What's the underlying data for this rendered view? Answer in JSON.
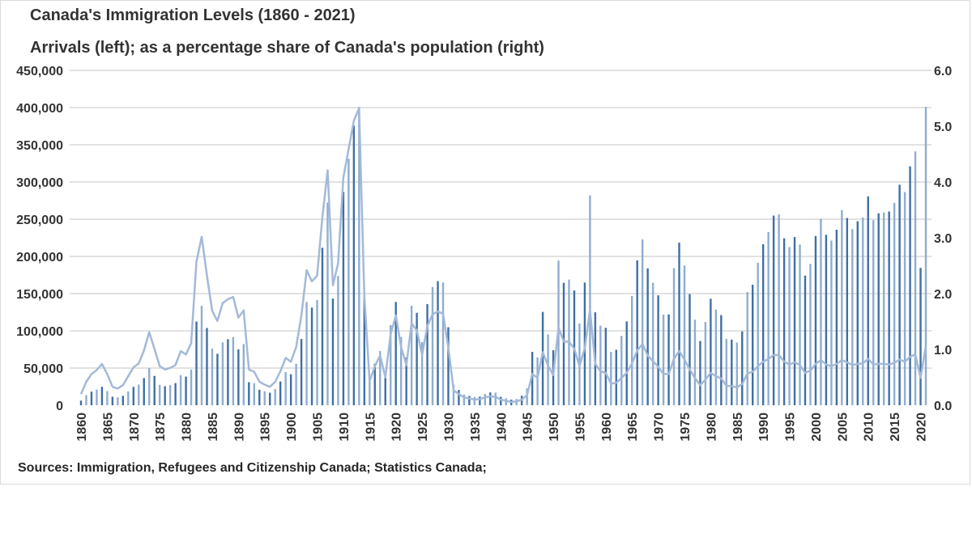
{
  "chart_data": {
    "type": "bar+line",
    "title": "Canada's Immigration Levels (1860 - 2021)",
    "subtitle": "Arrivals (left); as a percentage share of Canada's population (right)",
    "source": "Sources: Immigration, Refugees and Citizenship Canada;  Statistics Canada;",
    "xlabel": "",
    "ylabel": "",
    "y_left": {
      "range": [
        0,
        450000
      ],
      "ticks": [
        "0",
        "50,000",
        "100,000",
        "150,000",
        "200,000",
        "250,000",
        "300,000",
        "350,000",
        "400,000",
        "450,000"
      ]
    },
    "y_right": {
      "range": [
        0,
        6
      ],
      "ticks": [
        "0.0",
        "1.0",
        "2.0",
        "3.0",
        "4.0",
        "5.0",
        "6.0"
      ]
    },
    "x_ticks": [
      "1860",
      "1865",
      "1870",
      "1875",
      "1880",
      "1885",
      "1890",
      "1895",
      "1900",
      "1905",
      "1910",
      "1915",
      "1920",
      "1925",
      "1930",
      "1935",
      "1940",
      "1945",
      "1950",
      "1955",
      "1960",
      "1965",
      "1970",
      "1975",
      "1980",
      "1985",
      "1990",
      "1995",
      "2000",
      "2005",
      "2010",
      "2015",
      "2020"
    ],
    "grid": true,
    "legend": "none",
    "colors": {
      "bars_dark": "#3f6fa3",
      "bars_light": "#8fadd0",
      "line": "#a3b9d8",
      "grid": "#d9d9d9"
    },
    "x_start": 1860,
    "x_end": 2021,
    "series": [
      {
        "type": "bar",
        "axis": "left",
        "values": [
          6276,
          13589,
          18294,
          21000,
          24779,
          18958,
          11427,
          10666,
          12765,
          18630,
          24706,
          27773,
          36578,
          50050,
          39373,
          27382,
          25633,
          27082,
          29807,
          40492,
          38505,
          47991,
          112458,
          133624,
          103824,
          76169,
          69152,
          84526,
          88766,
          91600,
          75067,
          82165,
          30996,
          29633,
          20829,
          18790,
          16835,
          21716,
          31900,
          44543,
          41681,
          55747,
          89102,
          138660,
          131252,
          141465,
          211653,
          272409,
          143326,
          173694,
          286839,
          331288,
          375756,
          400870,
          150484,
          33665,
          55914,
          72910,
          41845,
          107698,
          138824,
          91728,
          64224,
          133729,
          124164,
          84907,
          135982,
          158886,
          166783,
          164993,
          104806,
          27530,
          20591,
          14382,
          12476,
          11277,
          11643,
          15101,
          17244,
          16994,
          11324,
          9329,
          7576,
          8504,
          12801,
          22722,
          71719,
          64127,
          125414,
          95217,
          73912,
          194391,
          164498,
          168868,
          154227,
          109946,
          164857,
          282164,
          124851,
          106928,
          104111,
          71689,
          74586,
          93151,
          112606,
          146758,
          194743,
          222876,
          183974,
          164531,
          147713,
          121900,
          122006,
          184200,
          218465,
          187881,
          149429,
          114914,
          86313,
          112096,
          143117,
          128618,
          121147,
          89157,
          88239,
          84302,
          99219,
          152098,
          161929,
          191493,
          216452,
          232744,
          254817,
          256641,
          224364,
          212504,
          226073,
          216036,
          174200,
          189954,
          227455,
          250638,
          229048,
          221349,
          235823,
          262242,
          251640,
          236753,
          247243,
          252179,
          280681,
          248748,
          257903,
          259023,
          260404,
          271845,
          296346,
          286479,
          321035,
          341180,
          184595,
          401000
        ]
      },
      {
        "type": "line",
        "axis": "right",
        "values": [
          0.2,
          0.42,
          0.56,
          0.63,
          0.74,
          0.56,
          0.33,
          0.3,
          0.36,
          0.52,
          0.68,
          0.75,
          0.98,
          1.31,
          1.01,
          0.7,
          0.64,
          0.67,
          0.72,
          0.97,
          0.91,
          1.11,
          2.57,
          3.02,
          2.32,
          1.69,
          1.51,
          1.83,
          1.9,
          1.94,
          1.57,
          1.7,
          0.64,
          0.6,
          0.42,
          0.37,
          0.33,
          0.42,
          0.61,
          0.85,
          0.78,
          1.04,
          1.61,
          2.42,
          2.22,
          2.32,
          3.37,
          4.21,
          2.15,
          2.54,
          4.08,
          4.59,
          5.1,
          5.32,
          1.96,
          0.43,
          0.7,
          0.89,
          0.5,
          1.27,
          1.61,
          1.04,
          0.72,
          1.47,
          1.34,
          0.9,
          1.42,
          1.63,
          1.68,
          1.64,
          1.03,
          0.27,
          0.2,
          0.14,
          0.12,
          0.1,
          0.11,
          0.14,
          0.16,
          0.15,
          0.1,
          0.08,
          0.06,
          0.07,
          0.1,
          0.18,
          0.56,
          0.49,
          0.95,
          0.71,
          0.54,
          1.39,
          1.14,
          1.14,
          1.01,
          0.7,
          1.02,
          1.71,
          0.74,
          0.61,
          0.58,
          0.39,
          0.4,
          0.49,
          0.58,
          0.75,
          0.98,
          1.1,
          0.89,
          0.79,
          0.69,
          0.56,
          0.56,
          0.83,
          0.97,
          0.82,
          0.64,
          0.49,
          0.36,
          0.46,
          0.58,
          0.52,
          0.48,
          0.35,
          0.34,
          0.32,
          0.38,
          0.57,
          0.6,
          0.7,
          0.78,
          0.83,
          0.9,
          0.9,
          0.78,
          0.73,
          0.77,
          0.72,
          0.58,
          0.62,
          0.74,
          0.81,
          0.73,
          0.7,
          0.74,
          0.81,
          0.77,
          0.72,
          0.74,
          0.75,
          0.83,
          0.73,
          0.74,
          0.74,
          0.73,
          0.76,
          0.82,
          0.78,
          0.87,
          0.91,
          0.49,
          1.06
        ]
      }
    ]
  }
}
